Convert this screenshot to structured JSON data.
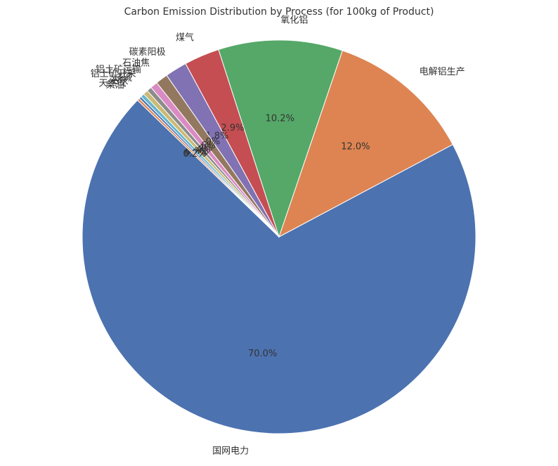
{
  "chart_data": {
    "type": "pie",
    "title": "Carbon Emission Distribution by Process (for 100kg of Product)",
    "categories": [
      "国网电力",
      "电解铝生产",
      "氧化铝",
      "煤气",
      "碳素阳极",
      "石油焦",
      "铝土矿运输",
      "铝土矿开采",
      "烧碱",
      "石灰",
      "天然气",
      "柴油"
    ],
    "values": [
      70.0,
      12.0,
      10.2,
      2.9,
      1.8,
      1.0,
      0.6,
      0.4,
      0.4,
      0.3,
      0.2,
      0.2
    ],
    "value_labels": [
      "70.0%",
      "12.0%",
      "10.2%",
      "2.9%",
      "1.8%",
      "1.0%",
      "0.6%",
      "0.4%",
      "0.4%",
      "0.3%",
      "0.2%",
      "0.2%"
    ],
    "colors": [
      "#4c72b0",
      "#dd8452",
      "#55a868",
      "#c44e52",
      "#8172b3",
      "#937860",
      "#da8bc3",
      "#8c8c8c",
      "#ccb974",
      "#64b5cd",
      "#4c72b0",
      "#dd8452"
    ]
  }
}
